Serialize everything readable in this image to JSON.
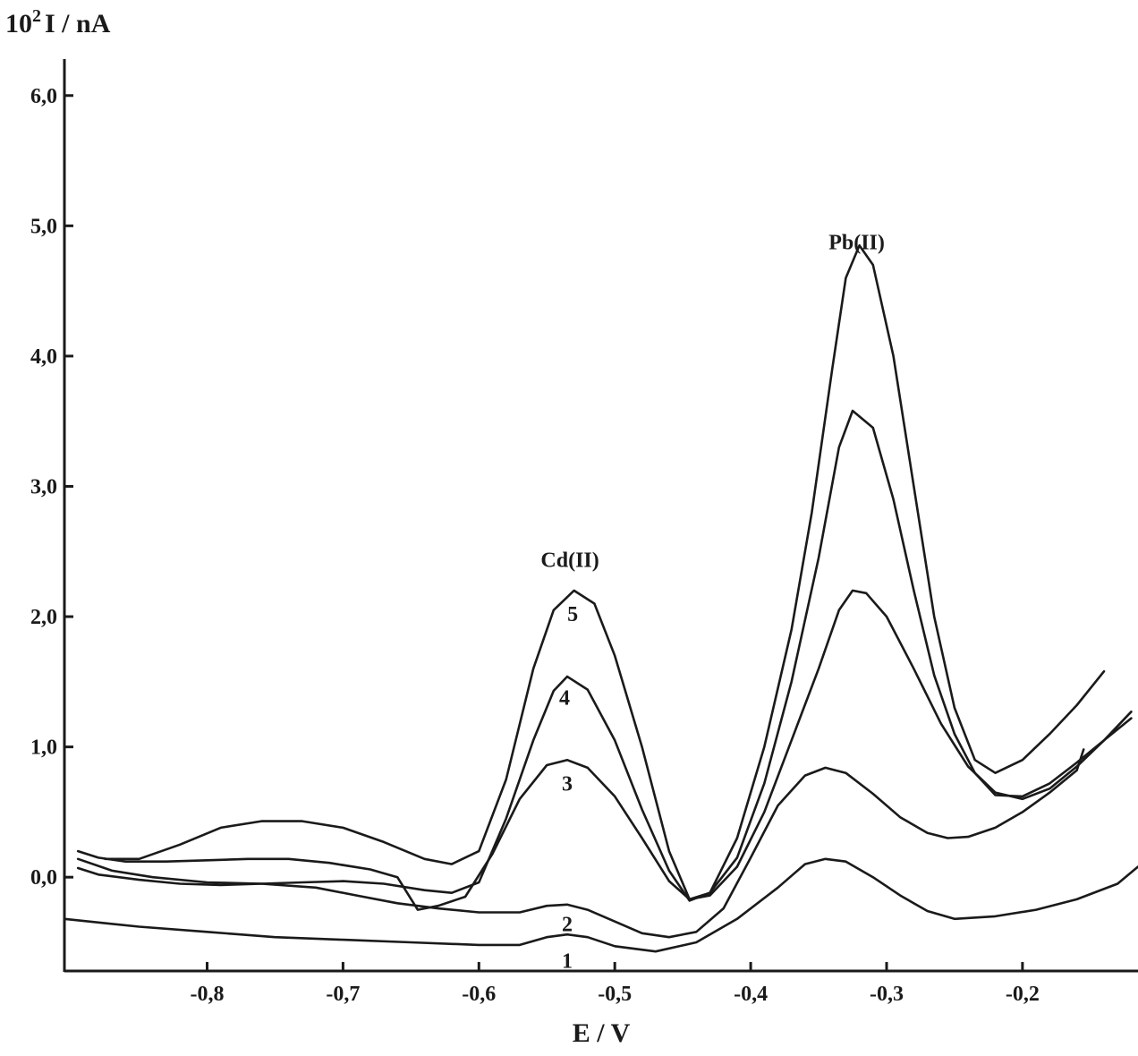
{
  "chart_data": {
    "type": "line",
    "ylabel_prefix": "10",
    "ylabel_exponent": "2",
    "ylabel_suffix": "I / nA",
    "xlabel": "E / V",
    "xlim": [
      -0.905,
      -0.115
    ],
    "ylim": [
      -0.72,
      6.28
    ],
    "x_ticks": [
      {
        "value": -0.8,
        "label": "-0,8"
      },
      {
        "value": -0.7,
        "label": "-0,7"
      },
      {
        "value": -0.6,
        "label": "-0,6"
      },
      {
        "value": -0.5,
        "label": "-0,5"
      },
      {
        "value": -0.4,
        "label": "-0,4"
      },
      {
        "value": -0.3,
        "label": "-0,3"
      },
      {
        "value": -0.2,
        "label": "-0,2"
      }
    ],
    "y_ticks": [
      {
        "value": 0.0,
        "label": "0,0"
      },
      {
        "value": 1.0,
        "label": "1,0"
      },
      {
        "value": 2.0,
        "label": "2,0"
      },
      {
        "value": 3.0,
        "label": "3,0"
      },
      {
        "value": 4.0,
        "label": "4,0"
      },
      {
        "value": 5.0,
        "label": "5,0"
      },
      {
        "value": 6.0,
        "label": "6,0"
      }
    ],
    "annotations": [
      {
        "text": "Cd(II)",
        "x": -0.533,
        "y": 2.38
      },
      {
        "text": "Pb(II)",
        "x": -0.322,
        "y": 4.82
      }
    ],
    "series": [
      {
        "name": "1",
        "label_at": {
          "x": -0.535,
          "y": -0.64
        },
        "points": [
          [
            -0.905,
            -0.32
          ],
          [
            -0.85,
            -0.38
          ],
          [
            -0.8,
            -0.42
          ],
          [
            -0.75,
            -0.46
          ],
          [
            -0.7,
            -0.48
          ],
          [
            -0.65,
            -0.5
          ],
          [
            -0.6,
            -0.52
          ],
          [
            -0.57,
            -0.52
          ],
          [
            -0.55,
            -0.46
          ],
          [
            -0.535,
            -0.44
          ],
          [
            -0.52,
            -0.46
          ],
          [
            -0.5,
            -0.53
          ],
          [
            -0.47,
            -0.57
          ],
          [
            -0.44,
            -0.5
          ],
          [
            -0.41,
            -0.32
          ],
          [
            -0.38,
            -0.08
          ],
          [
            -0.36,
            0.1
          ],
          [
            -0.345,
            0.14
          ],
          [
            -0.33,
            0.12
          ],
          [
            -0.31,
            0.0
          ],
          [
            -0.29,
            -0.14
          ],
          [
            -0.27,
            -0.26
          ],
          [
            -0.25,
            -0.32
          ],
          [
            -0.22,
            -0.3
          ],
          [
            -0.19,
            -0.25
          ],
          [
            -0.16,
            -0.17
          ],
          [
            -0.13,
            -0.05
          ],
          [
            -0.115,
            0.08
          ]
        ]
      },
      {
        "name": "2",
        "label_at": {
          "x": -0.535,
          "y": -0.36
        },
        "points": [
          [
            -0.895,
            0.14
          ],
          [
            -0.87,
            0.05
          ],
          [
            -0.84,
            0.0
          ],
          [
            -0.8,
            -0.04
          ],
          [
            -0.76,
            -0.05
          ],
          [
            -0.72,
            -0.08
          ],
          [
            -0.69,
            -0.14
          ],
          [
            -0.66,
            -0.2
          ],
          [
            -0.63,
            -0.24
          ],
          [
            -0.6,
            -0.27
          ],
          [
            -0.57,
            -0.27
          ],
          [
            -0.55,
            -0.22
          ],
          [
            -0.535,
            -0.21
          ],
          [
            -0.52,
            -0.25
          ],
          [
            -0.5,
            -0.34
          ],
          [
            -0.48,
            -0.43
          ],
          [
            -0.46,
            -0.46
          ],
          [
            -0.44,
            -0.42
          ],
          [
            -0.42,
            -0.24
          ],
          [
            -0.4,
            0.15
          ],
          [
            -0.38,
            0.55
          ],
          [
            -0.36,
            0.78
          ],
          [
            -0.345,
            0.84
          ],
          [
            -0.33,
            0.8
          ],
          [
            -0.31,
            0.64
          ],
          [
            -0.29,
            0.46
          ],
          [
            -0.27,
            0.34
          ],
          [
            -0.255,
            0.3
          ],
          [
            -0.24,
            0.31
          ],
          [
            -0.22,
            0.38
          ],
          [
            -0.2,
            0.5
          ],
          [
            -0.18,
            0.65
          ],
          [
            -0.16,
            0.82
          ],
          [
            -0.155,
            0.98
          ]
        ]
      },
      {
        "name": "3",
        "label_at": {
          "x": -0.535,
          "y": 0.72
        },
        "points": [
          [
            -0.895,
            0.2
          ],
          [
            -0.88,
            0.15
          ],
          [
            -0.86,
            0.12
          ],
          [
            -0.83,
            0.12
          ],
          [
            -0.8,
            0.13
          ],
          [
            -0.77,
            0.14
          ],
          [
            -0.74,
            0.14
          ],
          [
            -0.71,
            0.11
          ],
          [
            -0.68,
            0.06
          ],
          [
            -0.66,
            0.0
          ],
          [
            -0.645,
            -0.25
          ],
          [
            -0.63,
            -0.22
          ],
          [
            -0.61,
            -0.15
          ],
          [
            -0.59,
            0.18
          ],
          [
            -0.57,
            0.6
          ],
          [
            -0.55,
            0.86
          ],
          [
            -0.535,
            0.9
          ],
          [
            -0.52,
            0.84
          ],
          [
            -0.5,
            0.62
          ],
          [
            -0.48,
            0.3
          ],
          [
            -0.46,
            -0.03
          ],
          [
            -0.445,
            -0.17
          ],
          [
            -0.43,
            -0.14
          ],
          [
            -0.41,
            0.08
          ],
          [
            -0.39,
            0.5
          ],
          [
            -0.37,
            1.05
          ],
          [
            -0.35,
            1.6
          ],
          [
            -0.335,
            2.05
          ],
          [
            -0.325,
            2.2
          ],
          [
            -0.315,
            2.18
          ],
          [
            -0.3,
            2.0
          ],
          [
            -0.28,
            1.6
          ],
          [
            -0.26,
            1.18
          ],
          [
            -0.24,
            0.85
          ],
          [
            -0.22,
            0.65
          ],
          [
            -0.2,
            0.6
          ],
          [
            -0.18,
            0.68
          ],
          [
            -0.16,
            0.85
          ],
          [
            -0.14,
            1.05
          ],
          [
            -0.12,
            1.22
          ]
        ]
      },
      {
        "name": "4",
        "label_at": {
          "x": -0.537,
          "y": 1.38
        },
        "points": [
          [
            -0.895,
            0.07
          ],
          [
            -0.88,
            0.02
          ],
          [
            -0.85,
            -0.02
          ],
          [
            -0.82,
            -0.05
          ],
          [
            -0.79,
            -0.06
          ],
          [
            -0.76,
            -0.05
          ],
          [
            -0.73,
            -0.04
          ],
          [
            -0.7,
            -0.03
          ],
          [
            -0.67,
            -0.05
          ],
          [
            -0.64,
            -0.1
          ],
          [
            -0.62,
            -0.12
          ],
          [
            -0.6,
            -0.04
          ],
          [
            -0.58,
            0.45
          ],
          [
            -0.56,
            1.05
          ],
          [
            -0.545,
            1.43
          ],
          [
            -0.535,
            1.54
          ],
          [
            -0.52,
            1.44
          ],
          [
            -0.5,
            1.05
          ],
          [
            -0.48,
            0.52
          ],
          [
            -0.46,
            0.05
          ],
          [
            -0.445,
            -0.18
          ],
          [
            -0.43,
            -0.12
          ],
          [
            -0.41,
            0.15
          ],
          [
            -0.39,
            0.72
          ],
          [
            -0.37,
            1.5
          ],
          [
            -0.35,
            2.45
          ],
          [
            -0.335,
            3.3
          ],
          [
            -0.325,
            3.58
          ],
          [
            -0.31,
            3.45
          ],
          [
            -0.295,
            2.9
          ],
          [
            -0.28,
            2.2
          ],
          [
            -0.265,
            1.55
          ],
          [
            -0.25,
            1.1
          ],
          [
            -0.235,
            0.8
          ],
          [
            -0.22,
            0.63
          ],
          [
            -0.2,
            0.62
          ],
          [
            -0.18,
            0.72
          ],
          [
            -0.16,
            0.88
          ],
          [
            -0.14,
            1.05
          ],
          [
            -0.12,
            1.27
          ]
        ]
      },
      {
        "name": "5",
        "label_at": {
          "x": -0.531,
          "y": 2.02
        },
        "points": [
          [
            -0.875,
            0.14
          ],
          [
            -0.85,
            0.14
          ],
          [
            -0.82,
            0.25
          ],
          [
            -0.79,
            0.38
          ],
          [
            -0.76,
            0.43
          ],
          [
            -0.73,
            0.43
          ],
          [
            -0.7,
            0.38
          ],
          [
            -0.67,
            0.27
          ],
          [
            -0.64,
            0.14
          ],
          [
            -0.62,
            0.1
          ],
          [
            -0.6,
            0.2
          ],
          [
            -0.58,
            0.75
          ],
          [
            -0.56,
            1.6
          ],
          [
            -0.545,
            2.05
          ],
          [
            -0.53,
            2.2
          ],
          [
            -0.515,
            2.1
          ],
          [
            -0.5,
            1.7
          ],
          [
            -0.48,
            1.0
          ],
          [
            -0.46,
            0.2
          ],
          [
            -0.445,
            -0.17
          ],
          [
            -0.43,
            -0.12
          ],
          [
            -0.41,
            0.3
          ],
          [
            -0.39,
            1.0
          ],
          [
            -0.37,
            1.9
          ],
          [
            -0.355,
            2.8
          ],
          [
            -0.34,
            3.9
          ],
          [
            -0.33,
            4.6
          ],
          [
            -0.32,
            4.85
          ],
          [
            -0.31,
            4.7
          ],
          [
            -0.295,
            4.0
          ],
          [
            -0.28,
            3.0
          ],
          [
            -0.265,
            2.0
          ],
          [
            -0.25,
            1.3
          ],
          [
            -0.235,
            0.9
          ],
          [
            -0.22,
            0.8
          ],
          [
            -0.2,
            0.9
          ],
          [
            -0.18,
            1.1
          ],
          [
            -0.16,
            1.32
          ],
          [
            -0.14,
            1.58
          ]
        ]
      }
    ]
  }
}
